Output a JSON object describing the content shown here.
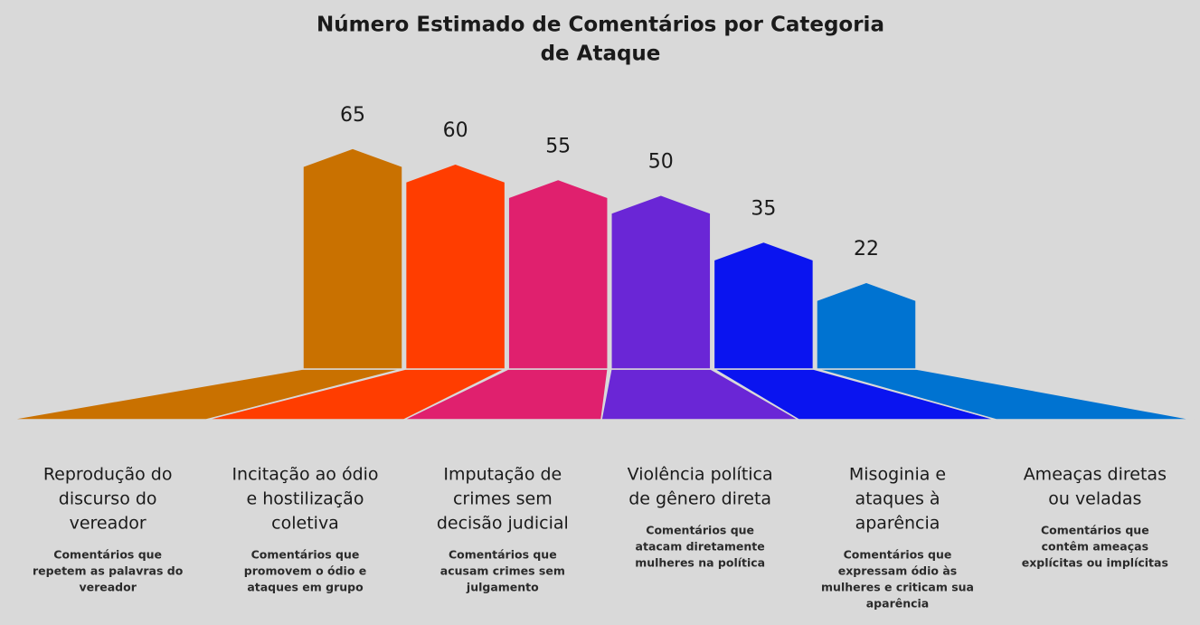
{
  "chart_data": {
    "type": "bar",
    "title": [
      "Número Estimado de Comentários por Categoria",
      "de Ataque"
    ],
    "categories": [
      [
        "Reprodução do",
        "discurso do",
        "vereador"
      ],
      [
        "Incitação ao ódio",
        "e hostilização",
        "coletiva"
      ],
      [
        "Imputação de",
        "crimes sem",
        "decisão judicial"
      ],
      [
        "Violência política",
        "de gênero direta"
      ],
      [
        "Misoginia e",
        "ataques à",
        "aparência"
      ],
      [
        "Ameaças diretas",
        "ou veladas"
      ]
    ],
    "descriptions": [
      [
        "Comentários que",
        "repetem as palavras do",
        "vereador"
      ],
      [
        "Comentários que",
        "promovem o ódio e",
        "ataques em grupo"
      ],
      [
        "Comentários que",
        "acusam crimes sem",
        "julgamento"
      ],
      [
        "Comentários que",
        "atacam diretamente",
        "mulheres na política"
      ],
      [
        "Comentários que",
        "expressam ódio às",
        "mulheres e criticam sua",
        "aparência"
      ],
      [
        "Comentários que",
        "contêm ameaças",
        "explícitas ou implícitas"
      ]
    ],
    "values": [
      65,
      60,
      55,
      50,
      35,
      22
    ],
    "colors": [
      "#c97100",
      "#ff3d00",
      "#e0206e",
      "#6a26d6",
      "#0a14f0",
      "#0073d1"
    ]
  }
}
